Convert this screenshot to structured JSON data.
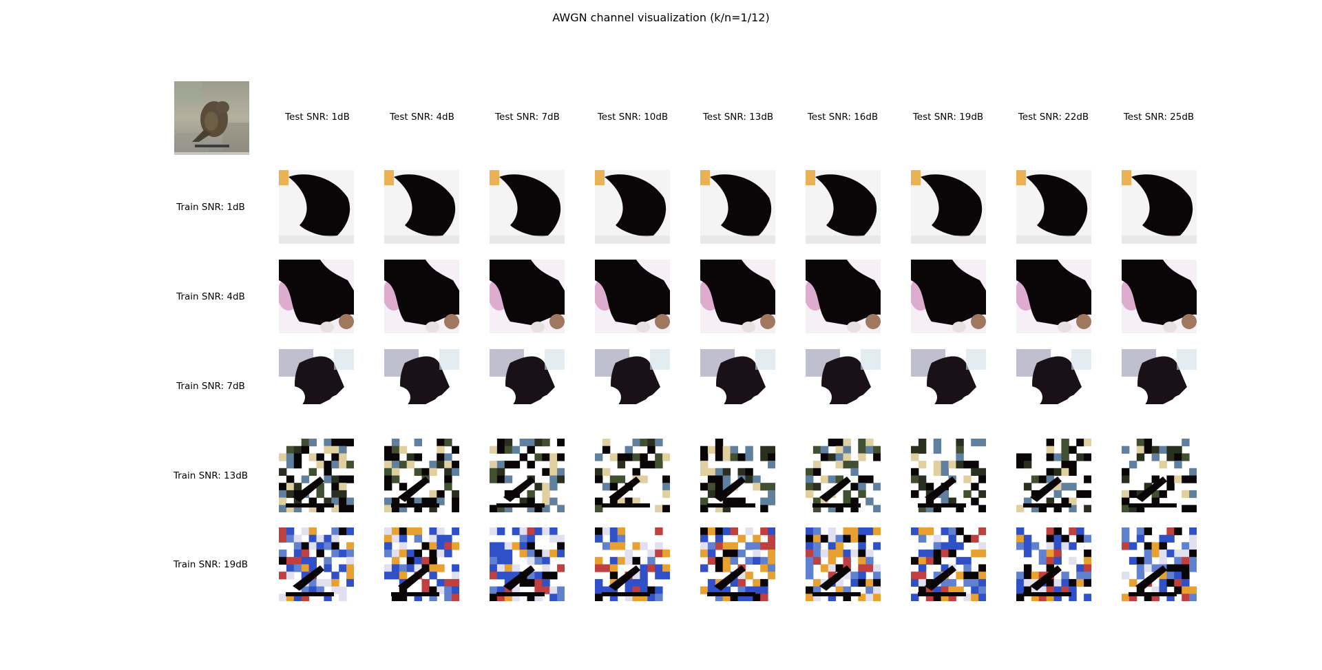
{
  "title": "AWGN channel visualization (k/n=1/12)",
  "test_snrs": [
    "Test SNR: 1dB",
    "Test SNR: 4dB",
    "Test SNR: 7dB",
    "Test SNR: 10dB",
    "Test SNR: 13dB",
    "Test SNR: 16dB",
    "Test SNR: 19dB",
    "Test SNR: 22dB",
    "Test SNR: 25dB"
  ],
  "train_snrs": [
    "Train SNR: 1dB",
    "Train SNR: 4dB",
    "Train SNR: 7dB",
    "Train SNR: 13dB",
    "Train SNR: 19dB"
  ],
  "colors": {
    "background": "#ffffff",
    "dark": "#0a0608",
    "orange": "#e8a030",
    "blue": "#3050c8",
    "pink": "#d8a0c8",
    "original_bg": "#a8a898",
    "bird": "#5a5040"
  }
}
